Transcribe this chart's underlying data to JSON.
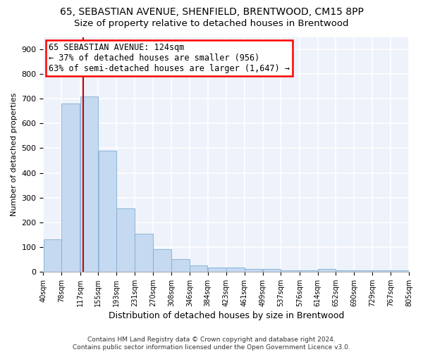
{
  "title": "65, SEBASTIAN AVENUE, SHENFIELD, BRENTWOOD, CM15 8PP",
  "subtitle": "Size of property relative to detached houses in Brentwood",
  "xlabel": "Distribution of detached houses by size in Brentwood",
  "ylabel": "Number of detached properties",
  "bar_values": [
    130,
    680,
    710,
    490,
    255,
    155,
    90,
    50,
    25,
    18,
    18,
    10,
    10,
    5,
    5,
    10,
    5,
    5,
    5,
    5
  ],
  "bin_edges": [
    40,
    78,
    117,
    155,
    193,
    231,
    270,
    308,
    346,
    384,
    423,
    461,
    499,
    537,
    576,
    614,
    652,
    690,
    729,
    767,
    805
  ],
  "bar_color": "#c5d9f1",
  "bar_edge_color": "#7fafd4",
  "background_color": "#eef2fb",
  "grid_color": "#ffffff",
  "vline_x": 124,
  "vline_color": "#cc0000",
  "annotation_line1": "65 SEBASTIAN AVENUE: 124sqm",
  "annotation_line2": "← 37% of detached houses are smaller (956)",
  "annotation_line3": "63% of semi-detached houses are larger (1,647) →",
  "ylim": [
    0,
    950
  ],
  "yticks": [
    0,
    100,
    200,
    300,
    400,
    500,
    600,
    700,
    800,
    900
  ],
  "footer_text": "Contains HM Land Registry data © Crown copyright and database right 2024.\nContains public sector information licensed under the Open Government Licence v3.0.",
  "title_fontsize": 10,
  "subtitle_fontsize": 9.5,
  "ann_fontsize": 8.5
}
